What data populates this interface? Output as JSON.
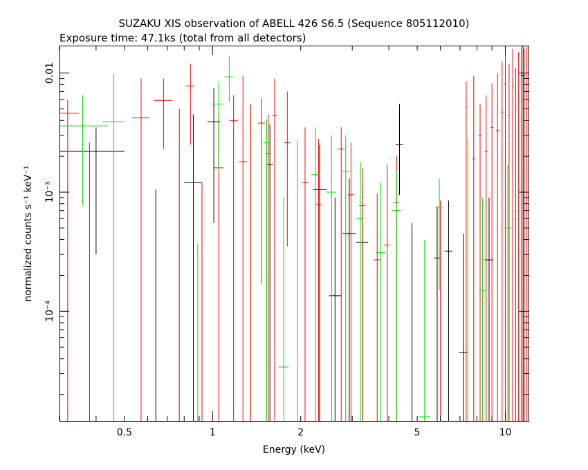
{
  "chart_data": {
    "type": "scatter",
    "title": "SUZAKU XIS observation of ABELL 426 S6.5 (Sequence 805112010)",
    "subtitle": "Exposure time: 47.1ks (total from all detectors)",
    "xlabel": "Energy (keV)",
    "ylabel": "normalized counts s⁻¹ keV⁻¹",
    "x_scale": "log",
    "y_scale": "log",
    "xlim": [
      0.3,
      12
    ],
    "ylim": [
      1.2e-05,
      0.017
    ],
    "x_ticks": [
      {
        "v": 0.5,
        "label": "0.5"
      },
      {
        "v": 1,
        "label": "1"
      },
      {
        "v": 2,
        "label": "2"
      },
      {
        "v": 5,
        "label": "5"
      },
      {
        "v": 10,
        "label": "10"
      }
    ],
    "y_ticks": [
      {
        "v": 0.0001,
        "label": "10⁻⁴"
      },
      {
        "v": 0.001,
        "label": "10⁻³"
      },
      {
        "v": 0.01,
        "label": "0.01"
      }
    ],
    "series": [
      {
        "color": "#000000",
        "points": [
          {
            "x": 0.4,
            "xlo": 0.3,
            "xhi": 0.5,
            "y": 0.0022,
            "ylo": 0.0003,
            "yhi": 0.0035
          },
          {
            "x": 0.64,
            "xlo": 0.64,
            "xhi": 0.64,
            "y": 0.0002,
            "ylo": 1.2e-05,
            "yhi": 0.00105
          },
          {
            "x": 0.86,
            "xlo": 0.8,
            "xhi": 0.92,
            "y": 0.0012,
            "ylo": 1.2e-05,
            "yhi": 0.0045
          },
          {
            "x": 1.01,
            "xlo": 0.96,
            "xhi": 1.06,
            "y": 0.0039,
            "ylo": 0.00055,
            "yhi": 0.0075
          },
          {
            "x": 1.57,
            "xlo": 1.53,
            "xhi": 1.61,
            "y": 0.0017,
            "ylo": 1.2e-05,
            "yhi": 0.0037
          },
          {
            "x": 2.32,
            "xlo": 2.2,
            "xhi": 2.45,
            "y": 0.00105,
            "ylo": 1.2e-05,
            "yhi": 0.0025
          },
          {
            "x": 2.62,
            "xlo": 2.5,
            "xhi": 2.75,
            "y": 0.000135,
            "ylo": 1.2e-05,
            "yhi": 0.0009
          },
          {
            "x": 2.93,
            "xlo": 2.78,
            "xhi": 3.08,
            "y": 0.00045,
            "ylo": 1.2e-05,
            "yhi": 0.0013
          },
          {
            "x": 3.25,
            "xlo": 3.1,
            "xhi": 3.4,
            "y": 0.00038,
            "ylo": 1.2e-05,
            "yhi": 0.0011
          },
          {
            "x": 4.35,
            "xlo": 4.22,
            "xhi": 4.48,
            "y": 0.0025,
            "ylo": 0.00095,
            "yhi": 0.0055
          },
          {
            "x": 4.8,
            "xlo": 4.8,
            "xhi": 4.8,
            "y": 0.0003,
            "ylo": 1.2e-05,
            "yhi": 0.00055
          },
          {
            "x": 5.85,
            "xlo": 5.7,
            "xhi": 6.0,
            "y": 0.00028,
            "ylo": 1.2e-05,
            "yhi": 0.00075
          },
          {
            "x": 6.4,
            "xlo": 6.2,
            "xhi": 6.6,
            "y": 0.00032,
            "ylo": 1.2e-05,
            "yhi": 0.00085
          },
          {
            "x": 7.2,
            "xlo": 6.95,
            "xhi": 7.45,
            "y": 4.5e-05,
            "ylo": 1.2e-05,
            "yhi": 0.00045
          },
          {
            "x": 8.8,
            "xlo": 8.5,
            "xhi": 9.1,
            "y": 0.00027,
            "ylo": 1.2e-05,
            "yhi": 0.0009
          },
          {
            "x": 11.5,
            "xlo": 11.3,
            "xhi": 11.7,
            "y": 0.0095,
            "ylo": 1.2e-05,
            "yhi": 0.017
          }
        ]
      },
      {
        "color": "#ff0000",
        "points": [
          {
            "x": 0.32,
            "xlo": 0.3,
            "xhi": 0.35,
            "y": 0.0046,
            "ylo": 1.2e-05,
            "yhi": 0.006
          },
          {
            "x": 0.38,
            "xlo": 0.38,
            "xhi": 0.38,
            "y": 0.001,
            "ylo": 1.2e-05,
            "yhi": 0.0026
          },
          {
            "x": 0.57,
            "xlo": 0.53,
            "xhi": 0.61,
            "y": 0.0042,
            "ylo": 1.2e-05,
            "yhi": 0.009
          },
          {
            "x": 0.68,
            "xlo": 0.63,
            "xhi": 0.73,
            "y": 0.0059,
            "ylo": 0.0023,
            "yhi": 0.009
          },
          {
            "x": 0.77,
            "xlo": 0.77,
            "xhi": 0.77,
            "y": 0.0005,
            "ylo": 1.2e-05,
            "yhi": 0.005
          },
          {
            "x": 0.84,
            "xlo": 0.81,
            "xhi": 0.87,
            "y": 0.0078,
            "ylo": 0.0025,
            "yhi": 0.012
          },
          {
            "x": 0.92,
            "xlo": 0.92,
            "xhi": 0.92,
            "y": 0.0004,
            "ylo": 1.2e-05,
            "yhi": 0.0012
          },
          {
            "x": 1.05,
            "xlo": 1.01,
            "xhi": 1.09,
            "y": 0.0016,
            "ylo": 1.2e-05,
            "yhi": 0.0045
          },
          {
            "x": 1.18,
            "xlo": 1.14,
            "xhi": 1.22,
            "y": 0.004,
            "ylo": 1.2e-05,
            "yhi": 0.0065
          },
          {
            "x": 1.27,
            "xlo": 1.23,
            "xhi": 1.31,
            "y": 0.0018,
            "ylo": 1.2e-05,
            "yhi": 0.0095
          },
          {
            "x": 1.35,
            "xlo": 1.35,
            "xhi": 1.35,
            "y": 0.001,
            "ylo": 1.2e-05,
            "yhi": 0.0055
          },
          {
            "x": 1.47,
            "xlo": 1.43,
            "xhi": 1.51,
            "y": 0.0038,
            "ylo": 0.00017,
            "yhi": 0.0062
          },
          {
            "x": 1.55,
            "xlo": 1.52,
            "xhi": 1.58,
            "y": 0.0021,
            "ylo": 1.2e-05,
            "yhi": 0.0045
          },
          {
            "x": 1.63,
            "xlo": 1.6,
            "xhi": 1.66,
            "y": 0.0044,
            "ylo": 1.2e-05,
            "yhi": 0.009
          },
          {
            "x": 1.8,
            "xlo": 1.76,
            "xhi": 1.84,
            "y": 0.0026,
            "ylo": 0.00035,
            "yhi": 0.007
          },
          {
            "x": 2.07,
            "xlo": 2.02,
            "xhi": 2.12,
            "y": 0.0012,
            "ylo": 1.2e-05,
            "yhi": 0.0035
          },
          {
            "x": 2.3,
            "xlo": 2.25,
            "xhi": 2.35,
            "y": 0.00079,
            "ylo": 1.2e-05,
            "yhi": 0.0028
          },
          {
            "x": 2.75,
            "xlo": 2.67,
            "xhi": 2.83,
            "y": 0.0023,
            "ylo": 1.2e-05,
            "yhi": 0.0035
          },
          {
            "x": 2.97,
            "xlo": 2.9,
            "xhi": 3.05,
            "y": 0.00095,
            "ylo": 1.2e-05,
            "yhi": 0.0026
          },
          {
            "x": 3.25,
            "xlo": 3.17,
            "xhi": 3.33,
            "y": 0.00077,
            "ylo": 1.2e-05,
            "yhi": 0.0016
          },
          {
            "x": 3.65,
            "xlo": 3.55,
            "xhi": 3.75,
            "y": 0.00027,
            "ylo": 1.2e-05,
            "yhi": 0.00098
          },
          {
            "x": 3.95,
            "xlo": 3.85,
            "xhi": 4.05,
            "y": 0.00036,
            "ylo": 1.2e-05,
            "yhi": 0.0017
          },
          {
            "x": 4.25,
            "xlo": 4.15,
            "xhi": 4.35,
            "y": 0.00082,
            "ylo": 1.2e-05,
            "yhi": 0.002
          },
          {
            "x": 6.0,
            "xlo": 6.0,
            "xhi": 6.0,
            "y": 0.0003,
            "ylo": 1.2e-05,
            "yhi": 0.00085
          },
          {
            "x": 7.35,
            "xlo": 7.3,
            "xhi": 7.4,
            "y": 0.0052,
            "ylo": 1.2e-05,
            "yhi": 0.0085
          },
          {
            "x": 7.8,
            "xlo": 7.72,
            "xhi": 7.88,
            "y": 0.0019,
            "ylo": 1.2e-05,
            "yhi": 0.0095
          },
          {
            "x": 8.2,
            "xlo": 8.1,
            "xhi": 8.3,
            "y": 0.003,
            "ylo": 1.2e-05,
            "yhi": 0.0055
          },
          {
            "x": 8.6,
            "xlo": 8.5,
            "xhi": 8.7,
            "y": 0.0022,
            "ylo": 1.2e-05,
            "yhi": 0.0065
          },
          {
            "x": 9.0,
            "xlo": 8.9,
            "xhi": 9.1,
            "y": 0.0035,
            "ylo": 1.2e-05,
            "yhi": 0.0082
          },
          {
            "x": 9.4,
            "xlo": 9.3,
            "xhi": 9.5,
            "y": 0.0033,
            "ylo": 1.2e-05,
            "yhi": 0.01
          },
          {
            "x": 9.75,
            "xlo": 9.68,
            "xhi": 9.82,
            "y": 0.0047,
            "ylo": 1.2e-05,
            "yhi": 0.0125
          },
          {
            "x": 10.0,
            "xlo": 9.93,
            "xhi": 10.07,
            "y": 0.0082,
            "ylo": 1.2e-05,
            "yhi": 0.0165
          },
          {
            "x": 10.3,
            "xlo": 10.22,
            "xhi": 10.38,
            "y": 0.0044,
            "ylo": 1.2e-05,
            "yhi": 0.012
          },
          {
            "x": 10.6,
            "xlo": 10.53,
            "xhi": 10.67,
            "y": 0.0078,
            "ylo": 1.2e-05,
            "yhi": 0.016
          },
          {
            "x": 10.85,
            "xlo": 10.79,
            "xhi": 10.91,
            "y": 0.0052,
            "ylo": 1.2e-05,
            "yhi": 0.011
          },
          {
            "x": 11.1,
            "xlo": 11.04,
            "xhi": 11.16,
            "y": 0.0066,
            "ylo": 1.2e-05,
            "yhi": 0.015
          },
          {
            "x": 11.35,
            "xlo": 11.3,
            "xhi": 11.4,
            "y": 0.0085,
            "ylo": 1.2e-05,
            "yhi": 0.017
          },
          {
            "x": 11.6,
            "xlo": 11.55,
            "xhi": 11.65,
            "y": 0.007,
            "ylo": 1.2e-05,
            "yhi": 0.016
          },
          {
            "x": 11.85,
            "xlo": 11.8,
            "xhi": 11.9,
            "y": 0.009,
            "ylo": 1.2e-05,
            "yhi": 0.017
          }
        ]
      },
      {
        "color": "#00dd00",
        "points": [
          {
            "x": 0.36,
            "xlo": 0.3,
            "xhi": 0.44,
            "y": 0.0036,
            "ylo": 0.00078,
            "yhi": 0.0065
          },
          {
            "x": 0.46,
            "xlo": 0.42,
            "xhi": 0.5,
            "y": 0.0039,
            "ylo": 1.2e-05,
            "yhi": 0.01
          },
          {
            "x": 0.89,
            "xlo": 0.89,
            "xhi": 0.89,
            "y": 0.0001,
            "ylo": 1.2e-05,
            "yhi": 0.00037
          },
          {
            "x": 1.05,
            "xlo": 1.0,
            "xhi": 1.1,
            "y": 0.0055,
            "ylo": 0.0015,
            "yhi": 0.0085
          },
          {
            "x": 1.14,
            "xlo": 1.1,
            "xhi": 1.18,
            "y": 0.0093,
            "ylo": 0.0057,
            "yhi": 0.014
          },
          {
            "x": 1.53,
            "xlo": 1.49,
            "xhi": 1.57,
            "y": 0.0026,
            "ylo": 1.2e-05,
            "yhi": 0.0041
          },
          {
            "x": 1.75,
            "xlo": 1.68,
            "xhi": 1.82,
            "y": 3.4e-05,
            "ylo": 1.2e-05,
            "yhi": 0.0009
          },
          {
            "x": 1.95,
            "xlo": 1.95,
            "xhi": 1.95,
            "y": 0.0004,
            "ylo": 1.2e-05,
            "yhi": 0.0027
          },
          {
            "x": 2.25,
            "xlo": 2.17,
            "xhi": 2.33,
            "y": 0.0014,
            "ylo": 1.2e-05,
            "yhi": 0.0035
          },
          {
            "x": 2.55,
            "xlo": 2.45,
            "xhi": 2.65,
            "y": 0.001,
            "ylo": 1.2e-05,
            "yhi": 0.003
          },
          {
            "x": 2.85,
            "xlo": 2.75,
            "xhi": 2.95,
            "y": 0.0015,
            "ylo": 1.2e-05,
            "yhi": 0.003
          },
          {
            "x": 3.2,
            "xlo": 3.1,
            "xhi": 3.3,
            "y": 0.0006,
            "ylo": 1.2e-05,
            "yhi": 0.0018
          },
          {
            "x": 3.75,
            "xlo": 3.6,
            "xhi": 3.9,
            "y": 0.00031,
            "ylo": 1.2e-05,
            "yhi": 0.0012
          },
          {
            "x": 4.25,
            "xlo": 4.1,
            "xhi": 4.4,
            "y": 0.0007,
            "ylo": 1.2e-05,
            "yhi": 0.0015
          },
          {
            "x": 5.3,
            "xlo": 5.05,
            "xhi": 5.55,
            "y": 1.3e-05,
            "ylo": 1.2e-05,
            "yhi": 0.0004
          },
          {
            "x": 5.95,
            "xlo": 5.75,
            "xhi": 6.15,
            "y": 0.00075,
            "ylo": 0.00015,
            "yhi": 0.0013
          },
          {
            "x": 7.45,
            "xlo": 7.45,
            "xhi": 7.45,
            "y": 0.0012,
            "ylo": 1.2e-05,
            "yhi": 0.0028
          },
          {
            "x": 8.35,
            "xlo": 8.15,
            "xhi": 8.55,
            "y": 0.00015,
            "ylo": 1.2e-05,
            "yhi": 0.0009
          },
          {
            "x": 10.2,
            "xlo": 9.9,
            "xhi": 10.5,
            "y": 0.0005,
            "ylo": 1.2e-05,
            "yhi": 0.0017
          }
        ]
      }
    ]
  }
}
